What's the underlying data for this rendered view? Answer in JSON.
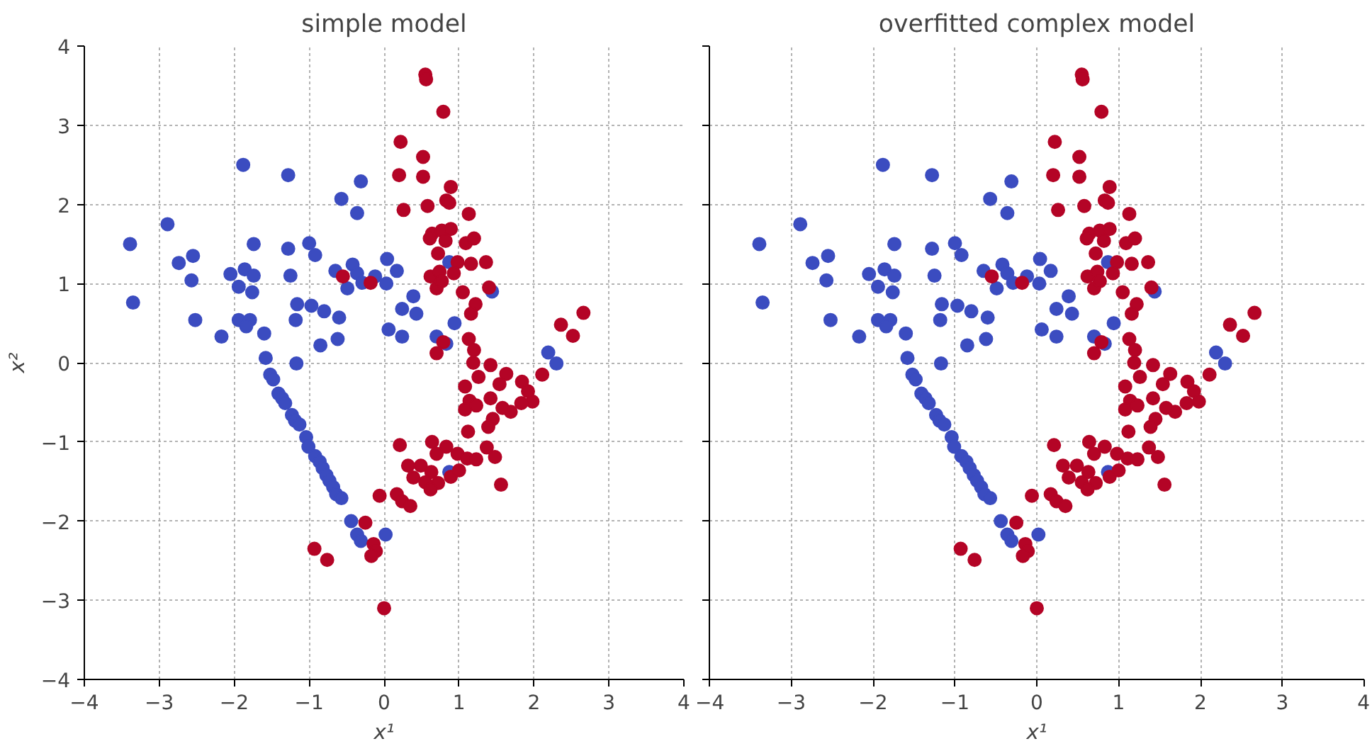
{
  "chart_data": [
    {
      "type": "scatter",
      "title": "simple model",
      "xlabel": "x¹",
      "ylabel": "x²",
      "xlim": [
        -4,
        4
      ],
      "ylim": [
        -4,
        4
      ],
      "xticks": [
        -4,
        -3,
        -2,
        -1,
        0,
        1,
        2,
        3,
        4
      ],
      "yticks": [
        -4,
        -3,
        -2,
        -1,
        0,
        1,
        2,
        3,
        4
      ],
      "grid": true,
      "marker": "circle",
      "series": [
        {
          "color": "#3b4cc0",
          "x": [
            -3.39,
            -3.35,
            -2.89,
            -2.74,
            -2.55,
            -2.57,
            -2.52,
            -2.17,
            -2.05,
            -1.94,
            -1.86,
            -1.74,
            -1.74,
            -1.76,
            -1.88,
            -1.94,
            -1.79,
            -1.84,
            -1.6,
            -1.58,
            -1.28,
            -1.28,
            -1.25,
            -1.0,
            -0.92,
            -1.16,
            -0.97,
            -1.18,
            -0.8,
            -1.17,
            -0.85,
            -0.6,
            -0.62,
            -0.57,
            -0.31,
            -0.36,
            -0.65,
            -0.42,
            -0.36,
            -0.49,
            -0.29,
            -0.12,
            0.04,
            0.03,
            0.17,
            0.39,
            0.24,
            0.43,
            0.06,
            0.24,
            0.7,
            0.83,
            0.94,
            0.87,
            1.44,
            2.19,
            2.3,
            -1.52,
            -1.48,
            -1.41,
            -1.36,
            -1.32,
            -1.23,
            -1.19,
            -1.13,
            -1.04,
            -1.01,
            -0.92,
            -0.86,
            -0.82,
            -0.77,
            -0.73,
            -0.68,
            -0.64,
            -0.57,
            -0.44,
            -0.36,
            -0.31,
            0.02,
            0.87
          ],
          "values": [
            1.5,
            0.76,
            1.75,
            1.26,
            1.35,
            1.04,
            0.54,
            0.33,
            1.12,
            0.96,
            1.18,
            1.5,
            1.1,
            0.89,
            2.5,
            0.54,
            0.54,
            0.46,
            0.37,
            0.06,
            2.37,
            1.44,
            1.1,
            1.51,
            1.36,
            0.74,
            0.72,
            0.54,
            0.65,
            -0.01,
            0.22,
            0.57,
            0.3,
            2.07,
            2.29,
            1.89,
            1.16,
            1.24,
            1.13,
            0.94,
            1.01,
            1.09,
            1.31,
            1.0,
            1.16,
            0.84,
            0.68,
            0.62,
            0.42,
            0.33,
            0.33,
            0.24,
            0.5,
            1.27,
            0.9,
            0.13,
            -0.01,
            -0.15,
            -0.21,
            -0.39,
            -0.45,
            -0.51,
            -0.66,
            -0.73,
            -0.78,
            -0.94,
            -1.06,
            -1.18,
            -1.25,
            -1.33,
            -1.42,
            -1.49,
            -1.57,
            -1.66,
            -1.71,
            -2.0,
            -2.17,
            -2.25,
            -2.17,
            -1.38
          ]
        },
        {
          "color": "#b40426",
          "x": [
            0.55,
            0.56,
            0.79,
            0.22,
            0.52,
            0.2,
            0.52,
            0.89,
            0.83,
            0.26,
            0.58,
            0.87,
            1.13,
            0.64,
            0.77,
            0.89,
            0.82,
            0.61,
            1.09,
            1.2,
            0.72,
            0.98,
            1.16,
            1.36,
            0.62,
            0.74,
            0.93,
            0.7,
            0.77,
            1.05,
            1.4,
            1.22,
            1.16,
            -0.55,
            -0.18,
            2.36,
            2.66,
            2.52,
            0.79,
            0.7,
            1.13,
            1.2,
            1.19,
            1.42,
            1.63,
            1.84,
            2.11,
            1.08,
            1.26,
            1.14,
            1.42,
            1.54,
            1.92,
            1.98,
            1.83,
            1.69,
            1.58,
            1.08,
            1.23,
            1.45,
            1.39,
            1.12,
            0.21,
            0.64,
            0.83,
            0.7,
            0.98,
            1.11,
            1.23,
            1.37,
            1.48,
            0.32,
            0.49,
            0.63,
            0.39,
            0.55,
            0.72,
            0.62,
            0.89,
            1.0,
            1.56,
            -0.06,
            0.17,
            0.24,
            0.35,
            -0.25,
            -0.93,
            -0.76,
            -0.14,
            -0.11,
            -0.17,
            0.0
          ],
          "values": [
            3.64,
            3.58,
            3.17,
            2.79,
            2.6,
            2.37,
            2.35,
            2.22,
            2.05,
            1.93,
            1.98,
            2.02,
            1.88,
            1.63,
            1.67,
            1.69,
            1.54,
            1.57,
            1.51,
            1.57,
            1.38,
            1.27,
            1.25,
            1.27,
            1.09,
            1.15,
            1.13,
            0.94,
            1.03,
            0.89,
            0.95,
            0.74,
            0.62,
            1.09,
            1.01,
            0.48,
            0.63,
            0.34,
            0.26,
            0.12,
            0.3,
            0.16,
            0.0,
            -0.03,
            -0.14,
            -0.24,
            -0.15,
            -0.3,
            -0.18,
            -0.48,
            -0.45,
            -0.27,
            -0.36,
            -0.49,
            -0.51,
            -0.62,
            -0.57,
            -0.59,
            -0.54,
            -0.71,
            -0.81,
            -0.87,
            -1.04,
            -1.0,
            -1.06,
            -1.15,
            -1.15,
            -1.21,
            -1.22,
            -1.07,
            -1.19,
            -1.3,
            -1.3,
            -1.38,
            -1.45,
            -1.51,
            -1.52,
            -1.6,
            -1.44,
            -1.36,
            -1.54,
            -1.68,
            -1.66,
            -1.75,
            -1.81,
            -2.02,
            -2.35,
            -2.49,
            -2.29,
            -2.38,
            -2.44,
            -3.1
          ]
        }
      ]
    },
    {
      "type": "scatter",
      "title": "overfitted complex model",
      "xlabel": "x¹",
      "xlim": [
        -4,
        4
      ],
      "ylim": [
        -4,
        4
      ],
      "xticks": [
        -4,
        -3,
        -2,
        -1,
        0,
        1,
        2,
        3,
        4
      ],
      "yticks": [
        -4,
        -3,
        -2,
        -1,
        0,
        1,
        2,
        3,
        4
      ],
      "tick_labels": "x",
      "grid": true,
      "marker": "circle",
      "series": [
        {
          "color": "#3b4cc0",
          "x": [
            -3.39,
            -3.35,
            -2.89,
            -2.74,
            -2.55,
            -2.57,
            -2.52,
            -2.17,
            -2.05,
            -1.94,
            -1.86,
            -1.74,
            -1.74,
            -1.76,
            -1.88,
            -1.94,
            -1.79,
            -1.84,
            -1.6,
            -1.58,
            -1.28,
            -1.28,
            -1.25,
            -1.0,
            -0.92,
            -1.16,
            -0.97,
            -1.18,
            -0.8,
            -1.17,
            -0.85,
            -0.6,
            -0.62,
            -0.57,
            -0.31,
            -0.36,
            -0.65,
            -0.42,
            -0.36,
            -0.49,
            -0.29,
            -0.12,
            0.04,
            0.03,
            0.17,
            0.39,
            0.24,
            0.43,
            0.06,
            0.24,
            0.7,
            0.83,
            0.94,
            0.87,
            1.44,
            2.19,
            2.3,
            -1.52,
            -1.48,
            -1.41,
            -1.36,
            -1.32,
            -1.23,
            -1.19,
            -1.13,
            -1.04,
            -1.01,
            -0.92,
            -0.86,
            -0.82,
            -0.77,
            -0.73,
            -0.68,
            -0.64,
            -0.57,
            -0.44,
            -0.36,
            -0.31,
            0.02,
            0.87
          ],
          "values": [
            1.5,
            0.76,
            1.75,
            1.26,
            1.35,
            1.04,
            0.54,
            0.33,
            1.12,
            0.96,
            1.18,
            1.5,
            1.1,
            0.89,
            2.5,
            0.54,
            0.54,
            0.46,
            0.37,
            0.06,
            2.37,
            1.44,
            1.1,
            1.51,
            1.36,
            0.74,
            0.72,
            0.54,
            0.65,
            -0.01,
            0.22,
            0.57,
            0.3,
            2.07,
            2.29,
            1.89,
            1.16,
            1.24,
            1.13,
            0.94,
            1.01,
            1.09,
            1.31,
            1.0,
            1.16,
            0.84,
            0.68,
            0.62,
            0.42,
            0.33,
            0.33,
            0.24,
            0.5,
            1.27,
            0.9,
            0.13,
            -0.01,
            -0.15,
            -0.21,
            -0.39,
            -0.45,
            -0.51,
            -0.66,
            -0.73,
            -0.78,
            -0.94,
            -1.06,
            -1.18,
            -1.25,
            -1.33,
            -1.42,
            -1.49,
            -1.57,
            -1.66,
            -1.71,
            -2.0,
            -2.17,
            -2.25,
            -2.17,
            -1.38
          ]
        },
        {
          "color": "#b40426",
          "x": [
            0.55,
            0.56,
            0.79,
            0.22,
            0.52,
            0.2,
            0.52,
            0.89,
            0.83,
            0.26,
            0.58,
            0.87,
            1.13,
            0.64,
            0.77,
            0.89,
            0.82,
            0.61,
            1.09,
            1.2,
            0.72,
            0.98,
            1.16,
            1.36,
            0.62,
            0.74,
            0.93,
            0.7,
            0.77,
            1.05,
            1.4,
            1.22,
            1.16,
            -0.55,
            -0.18,
            2.36,
            2.66,
            2.52,
            0.79,
            0.7,
            1.13,
            1.2,
            1.19,
            1.42,
            1.63,
            1.84,
            2.11,
            1.08,
            1.26,
            1.14,
            1.42,
            1.54,
            1.92,
            1.98,
            1.83,
            1.69,
            1.58,
            1.08,
            1.23,
            1.45,
            1.39,
            1.12,
            0.21,
            0.64,
            0.83,
            0.7,
            0.98,
            1.11,
            1.23,
            1.37,
            1.48,
            0.32,
            0.49,
            0.63,
            0.39,
            0.55,
            0.72,
            0.62,
            0.89,
            1.0,
            1.56,
            -0.06,
            0.17,
            0.24,
            0.35,
            -0.25,
            -0.93,
            -0.76,
            -0.14,
            -0.11,
            -0.17,
            0.0
          ],
          "values": [
            3.64,
            3.58,
            3.17,
            2.79,
            2.6,
            2.37,
            2.35,
            2.22,
            2.05,
            1.93,
            1.98,
            2.02,
            1.88,
            1.63,
            1.67,
            1.69,
            1.54,
            1.57,
            1.51,
            1.57,
            1.38,
            1.27,
            1.25,
            1.27,
            1.09,
            1.15,
            1.13,
            0.94,
            1.03,
            0.89,
            0.95,
            0.74,
            0.62,
            1.09,
            1.01,
            0.48,
            0.63,
            0.34,
            0.26,
            0.12,
            0.3,
            0.16,
            0.0,
            -0.03,
            -0.14,
            -0.24,
            -0.15,
            -0.3,
            -0.18,
            -0.48,
            -0.45,
            -0.27,
            -0.36,
            -0.49,
            -0.51,
            -0.62,
            -0.57,
            -0.59,
            -0.54,
            -0.71,
            -0.81,
            -0.87,
            -1.04,
            -1.0,
            -1.06,
            -1.15,
            -1.15,
            -1.21,
            -1.22,
            -1.07,
            -1.19,
            -1.3,
            -1.3,
            -1.38,
            -1.45,
            -1.51,
            -1.52,
            -1.6,
            -1.44,
            -1.36,
            -1.54,
            -1.68,
            -1.66,
            -1.75,
            -1.81,
            -2.02,
            -2.35,
            -2.49,
            -2.29,
            -2.38,
            -2.44,
            -3.1
          ]
        }
      ]
    }
  ]
}
